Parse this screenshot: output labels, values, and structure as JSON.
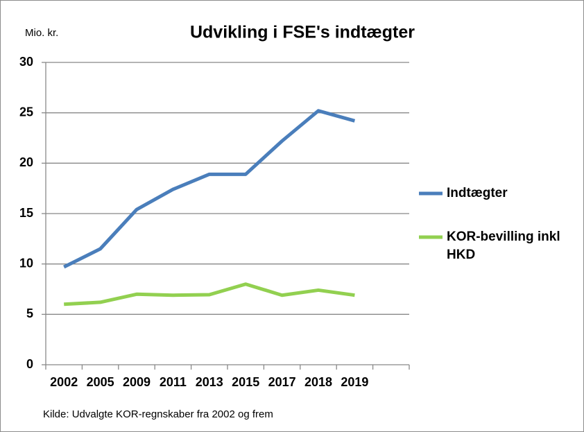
{
  "chart_data": {
    "type": "line",
    "title": "Udvikling i FSE's indtægter",
    "y_label": "Mio. kr.",
    "note": "Kilde: Udvalgte KOR-regnskaber fra 2002 og frem",
    "categories": [
      "2002",
      "2005",
      "2009",
      "2011",
      "2013",
      "2015",
      "2017",
      "2018",
      "2019",
      null
    ],
    "series": [
      {
        "name": "Indtægter",
        "color": "#4a7ebb",
        "values": [
          9.7,
          11.5,
          15.4,
          17.4,
          18.9,
          18.9,
          22.2,
          25.2,
          24.2,
          null
        ]
      },
      {
        "name": "KOR-bevilling inkl HKD",
        "color": "#92d050",
        "values": [
          6.0,
          6.2,
          7.0,
          6.9,
          6.95,
          8.0,
          6.9,
          7.4,
          6.9,
          null
        ]
      }
    ],
    "ylim": [
      0,
      30
    ],
    "yticks": [
      0,
      5,
      10,
      15,
      20,
      25,
      30
    ],
    "grid": true,
    "legend": "right"
  }
}
